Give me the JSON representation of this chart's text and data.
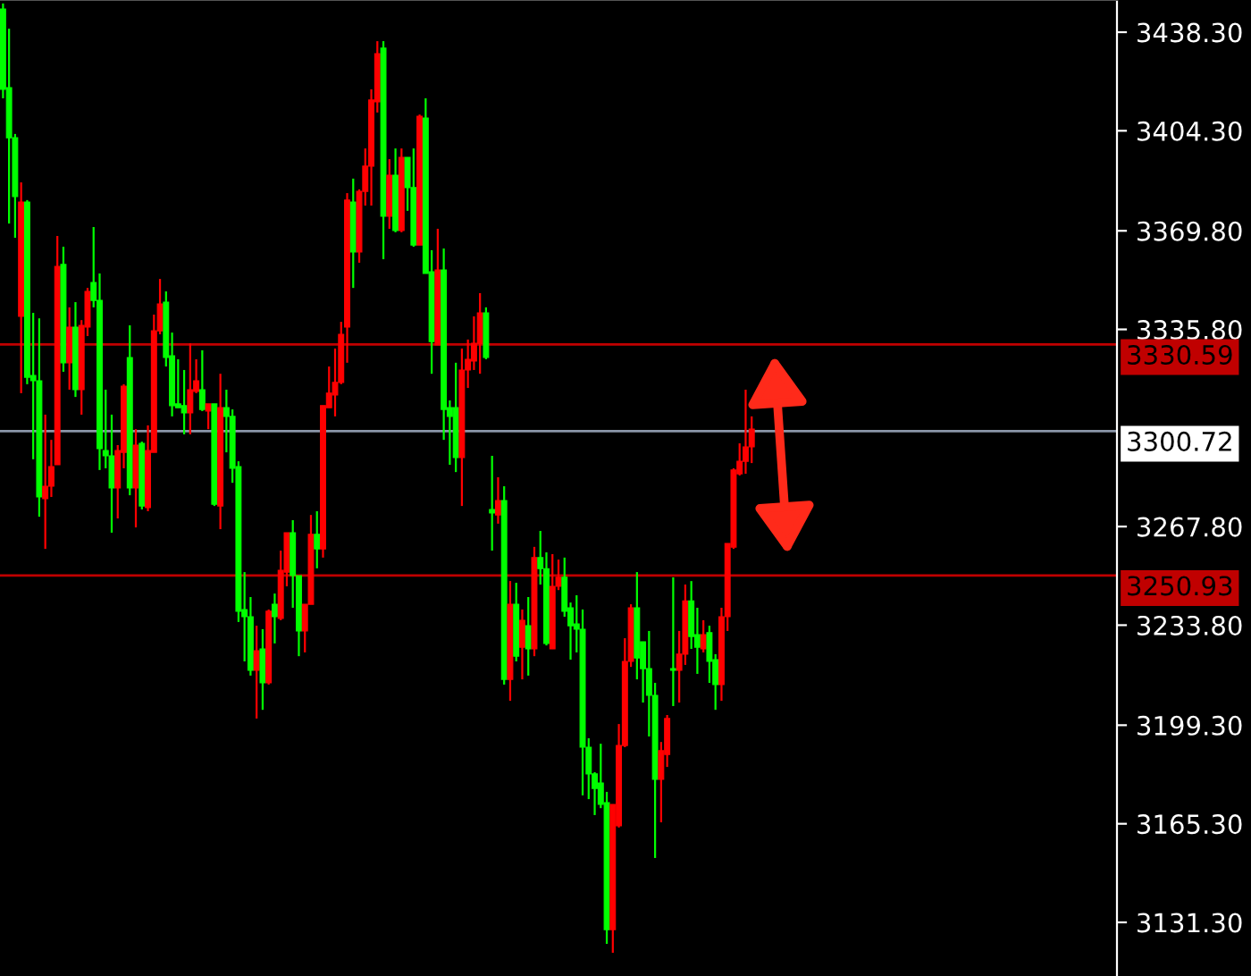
{
  "chart_data": {
    "type": "candlestick",
    "categories": [
      null,
      null,
      null,
      null,
      null,
      null,
      null,
      null,
      null,
      null,
      null,
      null,
      null,
      null,
      null,
      null,
      null,
      null,
      null,
      null,
      null,
      null,
      null,
      null,
      null,
      null,
      null,
      null,
      null,
      null,
      null,
      null,
      null,
      null,
      null,
      null,
      null,
      null,
      null,
      null,
      null,
      null,
      null,
      null,
      null,
      null,
      null,
      null,
      null,
      null,
      null,
      null,
      null,
      null,
      null,
      null,
      null,
      null,
      null,
      null,
      null,
      null,
      null,
      null,
      null,
      null,
      null,
      null,
      null,
      null,
      null,
      null,
      null,
      null,
      null,
      null,
      null,
      null,
      null,
      null,
      null,
      null,
      null,
      null,
      null,
      null,
      null,
      null,
      null,
      null,
      null,
      null,
      null,
      null,
      null,
      null,
      null,
      null,
      null,
      null,
      null,
      null,
      null,
      null,
      null,
      null,
      null,
      null,
      null,
      null,
      null,
      null,
      null,
      null,
      null,
      null,
      null,
      null,
      null,
      null,
      null,
      null,
      null,
      null,
      null,
      null,
      null,
      null,
      null,
      null,
      null,
      null,
      null,
      null,
      null,
      null,
      null,
      null,
      null,
      null,
      null,
      null,
      null,
      null,
      null,
      null,
      null,
      null,
      null,
      null,
      null,
      null,
      null,
      null,
      null,
      null,
      null,
      null,
      null,
      null,
      null,
      null,
      null,
      null,
      null,
      null,
      null,
      null,
      null,
      null,
      null,
      null,
      null,
      null,
      null,
      null,
      null,
      null,
      null,
      null,
      null,
      null,
      null,
      null,
      null
    ],
    "ohlc": [
      [
        3446.3,
        3448.2,
        3415.5,
        3418.6
      ],
      [
        3419.2,
        3439.5,
        3372.3,
        3401.9
      ],
      [
        3401.9,
        3403.2,
        3367.4,
        3381.6
      ],
      [
        3340.3,
        3386.5,
        3313.8,
        3379.7
      ],
      [
        3379.7,
        3380.4,
        3316.9,
        3319.3
      ],
      [
        3319.9,
        3341.5,
        3291.0,
        3318.1
      ],
      [
        3318.1,
        3339.6,
        3271.2,
        3278.0
      ],
      [
        3277.4,
        3306.4,
        3260.1,
        3281.7
      ],
      [
        3281.7,
        3297.7,
        3278.0,
        3288.5
      ],
      [
        3289.1,
        3368.0,
        3289.1,
        3357.5
      ],
      [
        3358.2,
        3364.3,
        3321.2,
        3324.3
      ],
      [
        3324.3,
        3343.4,
        3315.0,
        3336.6
      ],
      [
        3336.6,
        3345.2,
        3312.5,
        3315.0
      ],
      [
        3315.0,
        3339.0,
        3306.4,
        3337.2
      ],
      [
        3336.6,
        3350.1,
        3333.5,
        3348.9
      ],
      [
        3352.0,
        3371.1,
        3343.4,
        3345.8
      ],
      [
        3345.8,
        3355.1,
        3287.3,
        3294.7
      ],
      [
        3294.0,
        3315.0,
        3287.9,
        3292.2
      ],
      [
        3292.2,
        3306.4,
        3265.7,
        3281.1
      ],
      [
        3281.1,
        3295.9,
        3270.6,
        3294.0
      ],
      [
        3293.4,
        3316.9,
        3287.9,
        3316.2
      ],
      [
        3326.1,
        3337.2,
        3278.6,
        3281.1
      ],
      [
        3281.1,
        3301.4,
        3267.5,
        3295.9
      ],
      [
        3296.5,
        3297.1,
        3273.7,
        3274.9
      ],
      [
        3274.3,
        3302.7,
        3273.1,
        3294.0
      ],
      [
        3293.4,
        3340.9,
        3293.4,
        3335.3
      ],
      [
        3335.3,
        3353.2,
        3334.1,
        3344.6
      ],
      [
        3345.2,
        3348.9,
        3323.0,
        3326.1
      ],
      [
        3326.7,
        3334.7,
        3305.8,
        3309.5
      ],
      [
        3310.1,
        3325.5,
        3308.8,
        3308.8
      ],
      [
        3309.5,
        3321.8,
        3299.6,
        3307.0
      ],
      [
        3307.0,
        3331.0,
        3299.6,
        3315.0
      ],
      [
        3314.4,
        3325.5,
        3313.8,
        3318.1
      ],
      [
        3315.0,
        3328.6,
        3307.6,
        3308.2
      ],
      [
        3307.6,
        3310.1,
        3301.4,
        3310.1
      ],
      [
        3310.1,
        3310.1,
        3274.9,
        3275.5
      ],
      [
        3274.9,
        3320.5,
        3266.9,
        3308.8
      ],
      [
        3308.8,
        3315.0,
        3293.4,
        3305.8
      ],
      [
        3305.8,
        3308.2,
        3282.9,
        3287.9
      ],
      [
        3288.5,
        3290.3,
        3234.9,
        3238.6
      ],
      [
        3239.2,
        3252.1,
        3221.3,
        3236.7
      ],
      [
        3236.7,
        3243.5,
        3216.4,
        3218.2
      ],
      [
        3218.2,
        3233.6,
        3201.6,
        3225.0
      ],
      [
        3225.6,
        3232.4,
        3204.6,
        3213.9
      ],
      [
        3213.9,
        3239.2,
        3213.3,
        3238.6
      ],
      [
        3241.0,
        3244.7,
        3227.5,
        3236.7
      ],
      [
        3236.1,
        3259.5,
        3235.5,
        3252.7
      ],
      [
        3252.1,
        3265.7,
        3247.2,
        3265.7
      ],
      [
        3265.7,
        3270.0,
        3239.8,
        3250.9
      ],
      [
        3250.9,
        3250.9,
        3223.1,
        3231.8
      ],
      [
        3231.8,
        3241.0,
        3224.4,
        3241.0
      ],
      [
        3241.0,
        3271.8,
        3241.0,
        3265.1
      ],
      [
        3265.1,
        3273.1,
        3253.4,
        3260.1
      ],
      [
        3260.1,
        3309.5,
        3257.1,
        3309.5
      ],
      [
        3308.8,
        3323.0,
        3308.8,
        3313.8
      ],
      [
        3313.2,
        3329.2,
        3305.8,
        3317.5
      ],
      [
        3317.5,
        3338.4,
        3316.9,
        3334.1
      ],
      [
        3336.6,
        3382.8,
        3324.3,
        3380.4
      ],
      [
        3379.7,
        3387.8,
        3350.1,
        3362.5
      ],
      [
        3362.5,
        3384.1,
        3358.8,
        3383.4
      ],
      [
        3383.4,
        3398.2,
        3378.5,
        3392.1
      ],
      [
        3392.1,
        3418.6,
        3378.5,
        3414.9
      ],
      [
        3414.3,
        3435.2,
        3410.6,
        3430.9
      ],
      [
        3432.8,
        3435.2,
        3360.0,
        3374.8
      ],
      [
        3374.8,
        3394.5,
        3370.5,
        3389.0
      ],
      [
        3389.0,
        3398.2,
        3369.3,
        3369.9
      ],
      [
        3369.9,
        3398.2,
        3369.3,
        3395.1
      ],
      [
        3395.1,
        3395.1,
        3376.7,
        3384.7
      ],
      [
        3384.7,
        3398.2,
        3364.3,
        3364.9
      ],
      [
        3364.9,
        3409.9,
        3364.9,
        3409.3
      ],
      [
        3408.7,
        3415.5,
        3355.1,
        3355.1
      ],
      [
        3355.7,
        3363.1,
        3320.5,
        3331.6
      ],
      [
        3330.4,
        3370.5,
        3330.4,
        3356.3
      ],
      [
        3356.3,
        3363.7,
        3297.7,
        3308.2
      ],
      [
        3308.8,
        3311.3,
        3289.1,
        3305.8
      ],
      [
        3308.8,
        3324.3,
        3286.6,
        3291.6
      ],
      [
        3291.6,
        3329.2,
        3274.9,
        3321.8
      ],
      [
        3321.8,
        3332.3,
        3315.6,
        3325.5
      ],
      [
        3324.9,
        3340.3,
        3321.8,
        3331.0
      ],
      [
        3331.0,
        3348.3,
        3320.5,
        3341.5
      ],
      [
        3341.5,
        3343.4,
        3325.5,
        3326.1
      ],
      [
        3273.7,
        3292.2,
        3259.5,
        3272.5
      ],
      [
        3271.8,
        3284.8,
        3268.8,
        3276.8
      ],
      [
        3276.8,
        3281.7,
        3213.3,
        3215.1
      ],
      [
        3215.1,
        3249.0,
        3207.7,
        3241.0
      ],
      [
        3241.0,
        3248.4,
        3221.3,
        3223.1
      ],
      [
        3226.2,
        3239.2,
        3215.1,
        3235.5
      ],
      [
        3233.6,
        3243.5,
        3216.4,
        3225.6
      ],
      [
        3225.6,
        3260.8,
        3223.1,
        3257.1
      ],
      [
        3257.1,
        3266.3,
        3247.8,
        3253.3
      ],
      [
        3253.3,
        3258.9,
        3226.8,
        3227.5
      ],
      [
        3225.6,
        3258.3,
        3225.6,
        3247.2
      ],
      [
        3247.2,
        3256.4,
        3245.9,
        3250.3
      ],
      [
        3250.3,
        3257.1,
        3236.7,
        3238.6
      ],
      [
        3239.8,
        3241.6,
        3221.9,
        3233.6
      ],
      [
        3234.2,
        3244.1,
        3224.4,
        3232.4
      ],
      [
        3232.4,
        3239.2,
        3175.1,
        3191.7
      ],
      [
        3191.7,
        3194.8,
        3173.8,
        3182.5
      ],
      [
        3182.5,
        3183.1,
        3168.3,
        3177.5
      ],
      [
        3179.4,
        3192.9,
        3170.7,
        3172.0
      ],
      [
        3172.6,
        3176.3,
        3123.9,
        3128.8
      ],
      [
        3128.8,
        3172.0,
        3120.8,
        3172.0
      ],
      [
        3164.6,
        3199.7,
        3164.0,
        3192.3
      ],
      [
        3192.3,
        3229.3,
        3191.7,
        3221.3
      ],
      [
        3221.3,
        3241.0,
        3219.4,
        3239.8
      ],
      [
        3239.8,
        3252.1,
        3215.1,
        3222.5
      ],
      [
        3228.1,
        3228.1,
        3207.1,
        3218.8
      ],
      [
        3218.8,
        3231.8,
        3195.4,
        3209.6
      ],
      [
        3209.6,
        3213.9,
        3153.5,
        3180.6
      ],
      [
        3180.6,
        3193.5,
        3165.8,
        3190.5
      ],
      [
        3189.2,
        3202.8,
        3184.9,
        3201.6
      ],
      [
        3218.8,
        3250.3,
        3205.9,
        3218.2
      ],
      [
        3218.2,
        3231.8,
        3207.1,
        3223.8
      ],
      [
        3223.8,
        3247.8,
        3220.1,
        3242.2
      ],
      [
        3242.2,
        3249.0,
        3225.6,
        3229.9
      ],
      [
        3230.5,
        3239.8,
        3217.0,
        3226.2
      ],
      [
        3225.6,
        3235.5,
        3224.4,
        3230.5
      ],
      [
        3231.2,
        3233.6,
        3213.9,
        3221.3
      ],
      [
        3221.9,
        3223.8,
        3204.6,
        3213.3
      ],
      [
        3213.3,
        3239.8,
        3207.7,
        3236.7
      ],
      [
        3236.7,
        3262.0,
        3231.8,
        3262.0
      ],
      [
        3260.7,
        3287.9,
        3260.1,
        3287.3
      ],
      [
        3286.0,
        3296.5,
        3285.4,
        3290.3
      ],
      [
        3290.3,
        3315.0,
        3286.0,
        3295.3
      ],
      [
        3295.3,
        3305.8,
        3289.7,
        3301.4
      ],
      null,
      null,
      null,
      null,
      null,
      null,
      null,
      null,
      null,
      null,
      null,
      null,
      null,
      null,
      null,
      null,
      null,
      null,
      null,
      null,
      null,
      null,
      null,
      null,
      null,
      null,
      null,
      null,
      null,
      null,
      null,
      null,
      null,
      null,
      null,
      null,
      null,
      null,
      null,
      null,
      null,
      null,
      null,
      null,
      null,
      null,
      null,
      null,
      null,
      null,
      null,
      null,
      null,
      null,
      null,
      null,
      null,
      null,
      null,
      null
    ],
    "colors": [
      "#00ff00",
      "#00ff00",
      "#00ff00",
      "#ff0000",
      "#00ff00",
      "#00ff00",
      "#00ff00",
      "#ff0000",
      "#ff0000",
      "#ff0000",
      "#00ff00",
      "#ff0000",
      "#00ff00",
      "#ff0000",
      "#ff0000",
      "#00ff00",
      "#00ff00",
      "#00ff00",
      "#00ff00",
      "#ff0000",
      "#ff0000",
      "#00ff00",
      "#ff0000",
      "#00ff00",
      "#ff0000",
      "#ff0000",
      "#ff0000",
      "#00ff00",
      "#00ff00",
      "#00ff00",
      "#00ff00",
      "#ff0000",
      "#ff0000",
      "#00ff00",
      "#ff0000",
      "#00ff00",
      "#ff0000",
      "#00ff00",
      "#00ff00",
      "#00ff00",
      "#00ff00",
      "#00ff00",
      "#ff0000",
      "#00ff00",
      "#ff0000",
      "#00ff00",
      "#ff0000",
      "#ff0000",
      "#00ff00",
      "#00ff00",
      "#ff0000",
      "#ff0000",
      "#00ff00",
      "#ff0000",
      "#ff0000",
      "#ff0000",
      "#ff0000",
      "#ff0000",
      "#00ff00",
      "#ff0000",
      "#ff0000",
      "#ff0000",
      "#ff0000",
      "#00ff00",
      "#ff0000",
      "#00ff00",
      "#ff0000",
      "#00ff00",
      "#00ff00",
      "#ff0000",
      "#00ff00",
      "#00ff00",
      "#ff0000",
      "#00ff00",
      "#00ff00",
      "#00ff00",
      "#ff0000",
      "#ff0000",
      "#ff0000",
      "#ff0000",
      "#00ff00",
      "#00ff00",
      "#ff0000",
      "#00ff00",
      "#ff0000",
      "#00ff00",
      "#ff0000",
      "#00ff00",
      "#ff0000",
      "#00ff00",
      "#00ff00",
      "#ff0000",
      "#ff0000",
      "#00ff00",
      "#00ff00",
      "#00ff00",
      "#00ff00",
      "#00ff00",
      "#00ff00",
      "#00ff00",
      "#00ff00",
      "#ff0000",
      "#ff0000",
      "#ff0000",
      "#ff0000",
      "#00ff00",
      "#00ff00",
      "#00ff00",
      "#00ff00",
      "#ff0000",
      "#ff0000",
      "#00ff00",
      "#ff0000",
      "#ff0000",
      "#00ff00",
      "#00ff00",
      "#ff0000",
      "#00ff00",
      "#00ff00",
      "#ff0000",
      "#ff0000",
      "#ff0000",
      "#ff0000",
      "#ff0000",
      "#ff0000",
      null,
      null,
      null,
      null,
      null,
      null,
      null,
      null,
      null,
      null,
      null,
      null,
      null,
      null,
      null,
      null,
      null,
      null,
      null,
      null,
      null,
      null,
      null,
      null,
      null,
      null,
      null,
      null,
      null,
      null,
      null,
      null,
      null,
      null,
      null,
      null,
      null,
      null,
      null,
      null,
      null,
      null,
      null,
      null,
      null,
      null,
      null,
      null,
      null,
      null,
      null,
      null,
      null,
      null,
      null,
      null,
      null,
      null,
      null,
      null
    ],
    "ylim": [
      3112.8,
      3449.4
    ],
    "yticks": [
      {
        "value": 3131.3,
        "label": "3131.30"
      },
      {
        "value": 3165.3,
        "label": "3165.30"
      },
      {
        "value": 3199.3,
        "label": "3199.30"
      },
      {
        "value": 3233.8,
        "label": "3233.80"
      },
      {
        "value": 3267.8,
        "label": "3267.80"
      },
      {
        "value": 3335.8,
        "label": "3335.80"
      },
      {
        "value": 3369.8,
        "label": "3369.80"
      },
      {
        "value": 3404.3,
        "label": "3404.30"
      },
      {
        "value": 3438.3,
        "label": "3438.30"
      }
    ],
    "tick_labels": "y",
    "ref_lines": [
      {
        "axis": "y",
        "value": 3330.59,
        "label": "3330.59",
        "color": "#c00000"
      },
      {
        "axis": "y",
        "value": 3300.72,
        "label": "3300.72",
        "color": "#8a96a8"
      },
      {
        "axis": "y",
        "value": 3250.93,
        "label": "3250.93",
        "color": "#c00000"
      }
    ]
  }
}
